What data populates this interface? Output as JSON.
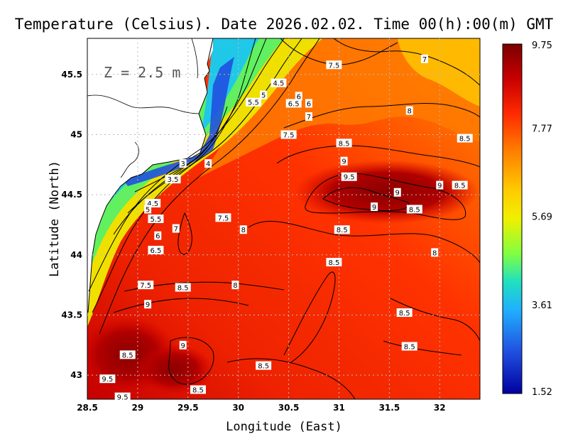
{
  "title": "Temperature (Celsius). Date 2026.02.02. Time 00(h):00(m) GMT",
  "depth_label": "Z = 2.5 m",
  "xlabel": "Longitude (East)",
  "ylabel": "Latitude (North)",
  "map": {
    "lon_range": [
      28.5,
      32.4
    ],
    "lat_range": [
      42.8,
      45.8
    ],
    "x_ticks": [
      "28.5",
      "29",
      "29.5",
      "30",
      "30.5",
      "31",
      "31.5",
      "32"
    ],
    "y_ticks": [
      "43",
      "43.5",
      "44",
      "44.5",
      "45",
      "45.5"
    ],
    "grid": "dotted"
  },
  "colorbar": {
    "min": 1.52,
    "max": 9.75,
    "ticks": [
      "9.75",
      "7.77",
      "5.69",
      "3.61",
      "1.52"
    ],
    "colors": [
      "#7a0000",
      "#c80000",
      "#ff2a00",
      "#ff7a00",
      "#ffcc00",
      "#f0f000",
      "#80ff40",
      "#20e0c0",
      "#20b0ff",
      "#2050e0",
      "#0000a0"
    ]
  },
  "contour_labels": [
    {
      "text": "7.5",
      "lon": 30.95,
      "lat": 45.58
    },
    {
      "text": "7",
      "lon": 31.85,
      "lat": 45.63
    },
    {
      "text": "4.5",
      "lon": 30.4,
      "lat": 45.43
    },
    {
      "text": "5",
      "lon": 30.25,
      "lat": 45.33
    },
    {
      "text": "5.5",
      "lon": 30.15,
      "lat": 45.27
    },
    {
      "text": "6",
      "lon": 30.6,
      "lat": 45.32
    },
    {
      "text": "6.5",
      "lon": 30.55,
      "lat": 45.26
    },
    {
      "text": "6",
      "lon": 30.7,
      "lat": 45.26
    },
    {
      "text": "7",
      "lon": 30.7,
      "lat": 45.15
    },
    {
      "text": "8",
      "lon": 31.7,
      "lat": 45.2
    },
    {
      "text": "7.5",
      "lon": 30.5,
      "lat": 45.0
    },
    {
      "text": "8.5",
      "lon": 31.05,
      "lat": 44.93
    },
    {
      "text": "8.5",
      "lon": 32.25,
      "lat": 44.97
    },
    {
      "text": "3",
      "lon": 29.45,
      "lat": 44.76
    },
    {
      "text": "4",
      "lon": 29.7,
      "lat": 44.76
    },
    {
      "text": "3.5",
      "lon": 29.35,
      "lat": 44.63
    },
    {
      "text": "9",
      "lon": 31.05,
      "lat": 44.78
    },
    {
      "text": "9.5",
      "lon": 31.1,
      "lat": 44.65
    },
    {
      "text": "9",
      "lon": 32.0,
      "lat": 44.58
    },
    {
      "text": "8.5",
      "lon": 32.2,
      "lat": 44.58
    },
    {
      "text": "9",
      "lon": 31.58,
      "lat": 44.52
    },
    {
      "text": "4.5",
      "lon": 29.15,
      "lat": 44.43
    },
    {
      "text": "5",
      "lon": 29.1,
      "lat": 44.38
    },
    {
      "text": "9",
      "lon": 31.35,
      "lat": 44.4
    },
    {
      "text": "8.5",
      "lon": 31.75,
      "lat": 44.38
    },
    {
      "text": "5.5",
      "lon": 29.18,
      "lat": 44.3
    },
    {
      "text": "7.5",
      "lon": 29.85,
      "lat": 44.31
    },
    {
      "text": "7",
      "lon": 29.38,
      "lat": 44.22
    },
    {
      "text": "8",
      "lon": 30.05,
      "lat": 44.21
    },
    {
      "text": "8.5",
      "lon": 31.03,
      "lat": 44.21
    },
    {
      "text": "6",
      "lon": 29.2,
      "lat": 44.16
    },
    {
      "text": "6.5",
      "lon": 29.18,
      "lat": 44.04
    },
    {
      "text": "8",
      "lon": 31.95,
      "lat": 44.02
    },
    {
      "text": "8.5",
      "lon": 30.95,
      "lat": 43.94
    },
    {
      "text": "7.5",
      "lon": 29.08,
      "lat": 43.75
    },
    {
      "text": "8.5",
      "lon": 29.45,
      "lat": 43.73
    },
    {
      "text": "8",
      "lon": 29.97,
      "lat": 43.75
    },
    {
      "text": "9",
      "lon": 29.1,
      "lat": 43.59
    },
    {
      "text": "8.5",
      "lon": 31.65,
      "lat": 43.52
    },
    {
      "text": "9",
      "lon": 29.45,
      "lat": 43.25
    },
    {
      "text": "8.5",
      "lon": 31.7,
      "lat": 43.24
    },
    {
      "text": "8.5",
      "lon": 28.9,
      "lat": 43.17
    },
    {
      "text": "8.5",
      "lon": 30.25,
      "lat": 43.08
    },
    {
      "text": "9.5",
      "lon": 28.7,
      "lat": 42.97
    },
    {
      "text": "8.5",
      "lon": 29.6,
      "lat": 42.88
    },
    {
      "text": "9.5",
      "lon": 28.85,
      "lat": 42.82
    }
  ]
}
